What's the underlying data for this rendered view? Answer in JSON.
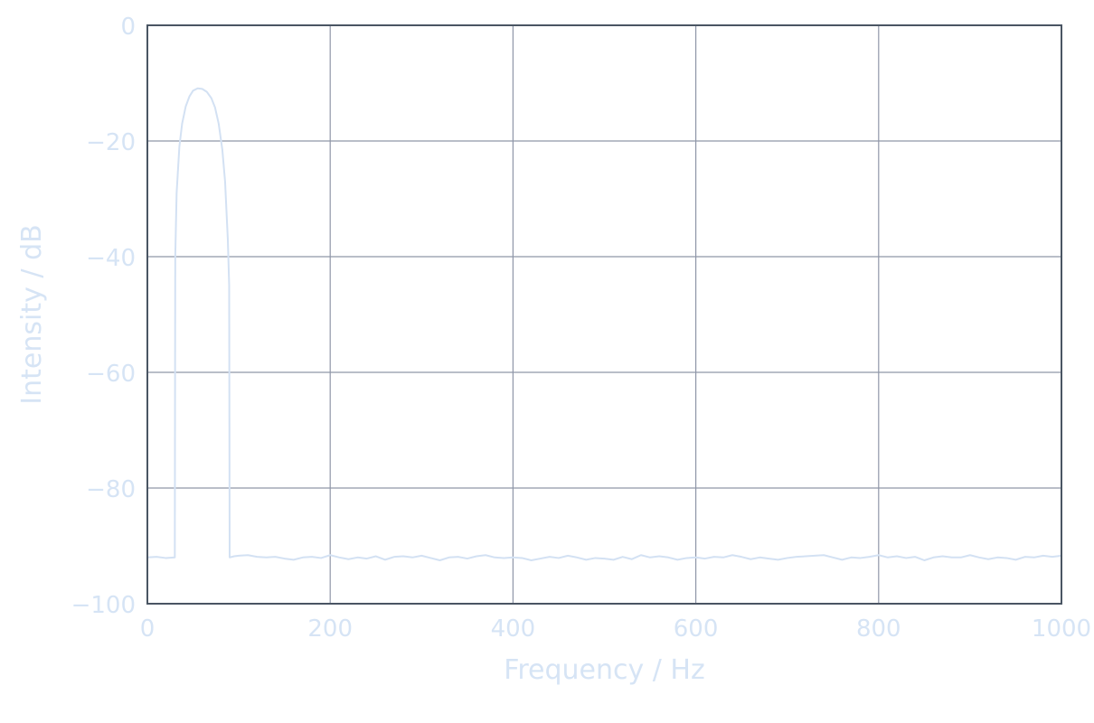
{
  "chart_data": {
    "type": "line",
    "title": "",
    "xlabel": "Frequency / Hz",
    "ylabel": "Intensity / dB",
    "xlim": [
      0,
      1000
    ],
    "ylim": [
      -100,
      0
    ],
    "xticks": [
      0,
      200,
      400,
      600,
      800,
      1000
    ],
    "yticks": [
      0,
      -20,
      -40,
      -60,
      -80,
      -100
    ],
    "xtick_labels": [
      "0",
      "200",
      "400",
      "600",
      "800",
      "1000"
    ],
    "ytick_labels": [
      "0",
      "−20",
      "−40",
      "−60",
      "−80",
      "−100"
    ],
    "grid": true,
    "legend": "none",
    "colors": {
      "line": "#d3e1f3",
      "grid": "#8f96a8",
      "frame": "#4a5563",
      "text": "#d6e4f5"
    },
    "series": [
      {
        "x": [
          0,
          10,
          20,
          30,
          30.5,
          32,
          35,
          38,
          42,
          46,
          50,
          55,
          60,
          65,
          70,
          74,
          78,
          82,
          85,
          88,
          89.5,
          90,
          95,
          100,
          110,
          120,
          130,
          140,
          150,
          160,
          170,
          180,
          190,
          200,
          210,
          220,
          230,
          240,
          250,
          260,
          270,
          280,
          290,
          300,
          310,
          320,
          330,
          340,
          350,
          360,
          370,
          380,
          390,
          400,
          410,
          420,
          430,
          440,
          450,
          460,
          470,
          480,
          490,
          500,
          510,
          520,
          530,
          540,
          550,
          560,
          570,
          580,
          590,
          600,
          610,
          620,
          630,
          640,
          650,
          660,
          670,
          680,
          690,
          700,
          710,
          720,
          730,
          740,
          750,
          760,
          770,
          780,
          790,
          800,
          810,
          820,
          830,
          840,
          850,
          860,
          870,
          880,
          890,
          900,
          910,
          920,
          930,
          940,
          950,
          960,
          970,
          980,
          990,
          1000
        ],
        "values": [
          -92.0,
          -91.9,
          -92.1,
          -92.0,
          -40.0,
          -29.0,
          -21.0,
          -17.0,
          -14.0,
          -12.3,
          -11.3,
          -10.9,
          -11.0,
          -11.5,
          -12.6,
          -14.2,
          -17.0,
          -21.5,
          -27.0,
          -37.0,
          -45.0,
          -92.0,
          -91.8,
          -91.7,
          -91.6,
          -91.9,
          -92.0,
          -91.9,
          -92.2,
          -92.4,
          -92.0,
          -91.9,
          -92.1,
          -91.6,
          -92.0,
          -92.3,
          -92.0,
          -92.2,
          -91.8,
          -92.4,
          -91.9,
          -91.8,
          -92.0,
          -91.7,
          -92.1,
          -92.5,
          -92.0,
          -91.9,
          -92.2,
          -91.8,
          -91.6,
          -92.0,
          -92.1,
          -92.0,
          -92.1,
          -92.5,
          -92.2,
          -91.9,
          -92.1,
          -91.7,
          -92.0,
          -92.4,
          -92.1,
          -92.2,
          -92.4,
          -91.9,
          -92.3,
          -91.6,
          -92.0,
          -91.8,
          -92.0,
          -92.4,
          -92.1,
          -92.0,
          -92.2,
          -91.9,
          -92.0,
          -91.6,
          -91.9,
          -92.3,
          -92.0,
          -92.2,
          -92.4,
          -92.1,
          -91.9,
          -91.8,
          -91.7,
          -91.6,
          -92.0,
          -92.4,
          -92.0,
          -92.1,
          -91.9,
          -91.6,
          -92.0,
          -91.8,
          -92.1,
          -91.9,
          -92.5,
          -92.0,
          -91.8,
          -92.0,
          -92.0,
          -91.6,
          -92.0,
          -92.3,
          -92.0,
          -92.1,
          -92.4,
          -91.9,
          -92.0,
          -91.7,
          -91.9,
          -91.7
        ]
      }
    ]
  }
}
